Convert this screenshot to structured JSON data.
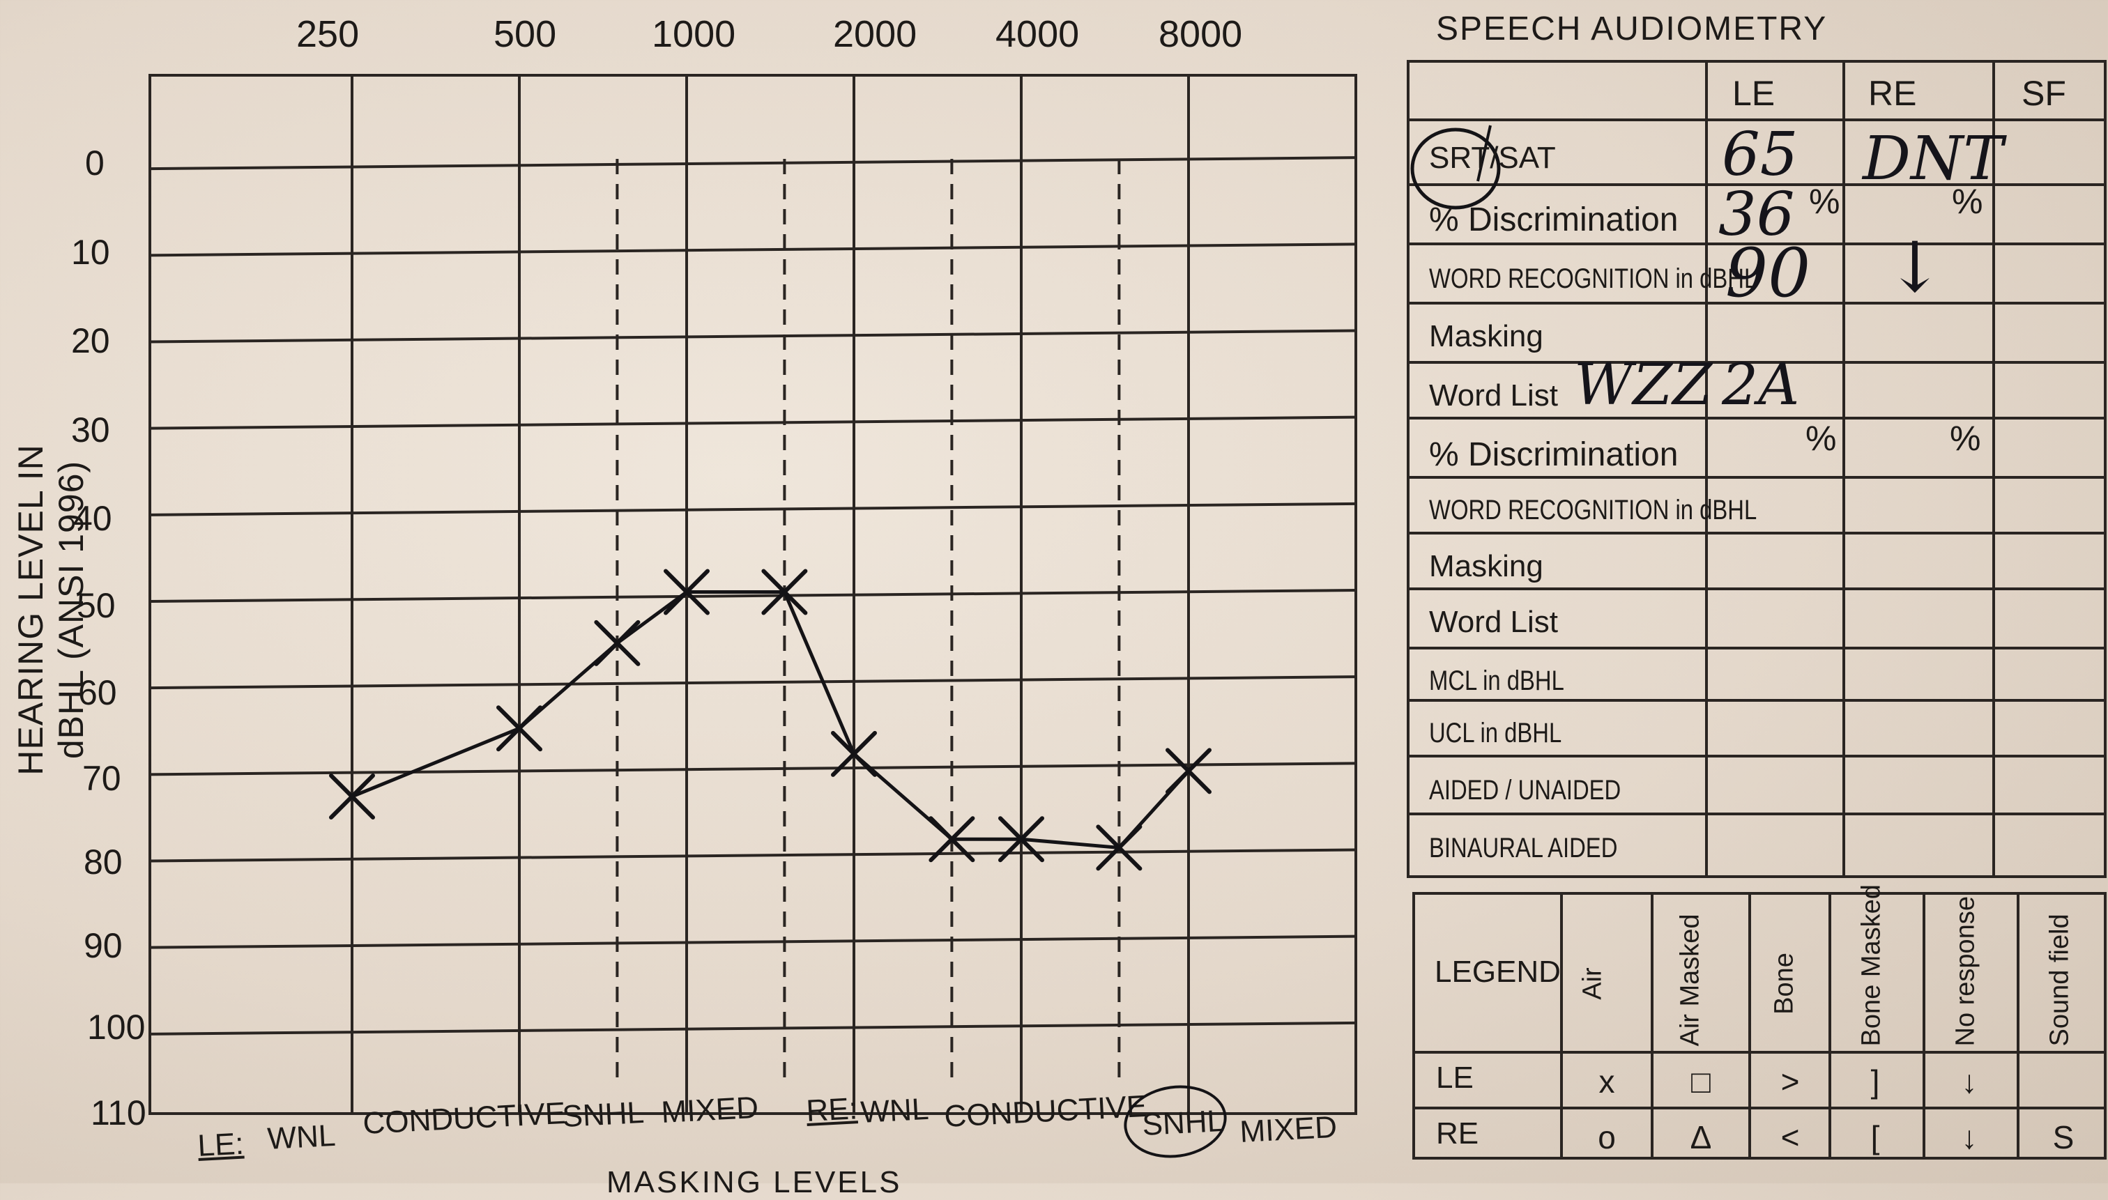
{
  "audiogram": {
    "frequencies": [
      "250",
      "500",
      "1000",
      "2000",
      "4000",
      "8000"
    ],
    "db_levels": [
      "0",
      "10",
      "20",
      "30",
      "40",
      "50",
      "60",
      "70",
      "80",
      "90",
      "100",
      "110"
    ],
    "y_axis_label": "HEARING LEVEL IN dBHL (ANSI 1996)",
    "bottom_text": "MASKING LEVELS",
    "le_label": "LE:",
    "re_label": "RE:",
    "le_categories": [
      "WNL",
      "CONDUCTIVE",
      "SNHL",
      "MIXED"
    ],
    "re_categories": [
      "WNL",
      "CONDUCTIVE",
      "SNHL",
      "MIXED"
    ],
    "re_circled": "SNHL",
    "left_ear_air": [
      {
        "freq_hz": 250,
        "db": 74
      },
      {
        "freq_hz": 500,
        "db": 66
      },
      {
        "freq_hz": 750,
        "db": 56
      },
      {
        "freq_hz": 1000,
        "db": 50
      },
      {
        "freq_hz": 1500,
        "db": 50
      },
      {
        "freq_hz": 2000,
        "db": 69
      },
      {
        "freq_hz": 3000,
        "db": 79
      },
      {
        "freq_hz": 4000,
        "db": 79
      },
      {
        "freq_hz": 6000,
        "db": 80
      },
      {
        "freq_hz": 8000,
        "db": 71
      }
    ]
  },
  "speech": {
    "title": "SPEECH AUDIOMETRY",
    "columns": [
      "LE",
      "RE",
      "SF"
    ],
    "rows": [
      {
        "label": "SRT/SAT",
        "le": "65",
        "re": "DNT",
        "sf": ""
      },
      {
        "label": "% Discrimination",
        "le": "36",
        "re": "",
        "sf": ""
      },
      {
        "label": "WORD RECOGNITION in dBHL",
        "le": "90",
        "re": "↓",
        "sf": ""
      },
      {
        "label": "Masking",
        "le": "",
        "re": "",
        "sf": ""
      },
      {
        "label": "Word List",
        "le": "2A",
        "re": "",
        "sf": ""
      },
      {
        "label": "% Discrimination",
        "le": "",
        "re": "",
        "sf": ""
      },
      {
        "label": "WORD RECOGNITION in dBHL",
        "le": "",
        "re": "",
        "sf": ""
      },
      {
        "label": "Masking",
        "le": "",
        "re": "",
        "sf": ""
      },
      {
        "label": "Word List",
        "le": "",
        "re": "",
        "sf": ""
      },
      {
        "label": "MCL in dBHL",
        "le": "",
        "re": "",
        "sf": ""
      },
      {
        "label": "UCL in dBHL",
        "le": "",
        "re": "",
        "sf": ""
      },
      {
        "label": "AIDED / UNAIDED",
        "le": "",
        "re": "",
        "sf": ""
      },
      {
        "label": "BINAURAL AIDED",
        "le": "",
        "re": "",
        "sf": ""
      }
    ],
    "word_list_value": "WZZ",
    "percent_sign": "%"
  },
  "legend": {
    "title": "LEGEND",
    "columns": [
      "Air",
      "Air Masked",
      "Bone",
      "Bone Masked",
      "No response",
      "Sound field"
    ],
    "le_label": "LE",
    "re_label": "RE",
    "le_symbols": [
      "x",
      "□",
      ">",
      "]",
      "↓",
      ""
    ],
    "re_symbols": [
      "o",
      "Δ",
      "<",
      "[",
      "↓",
      "S"
    ]
  }
}
